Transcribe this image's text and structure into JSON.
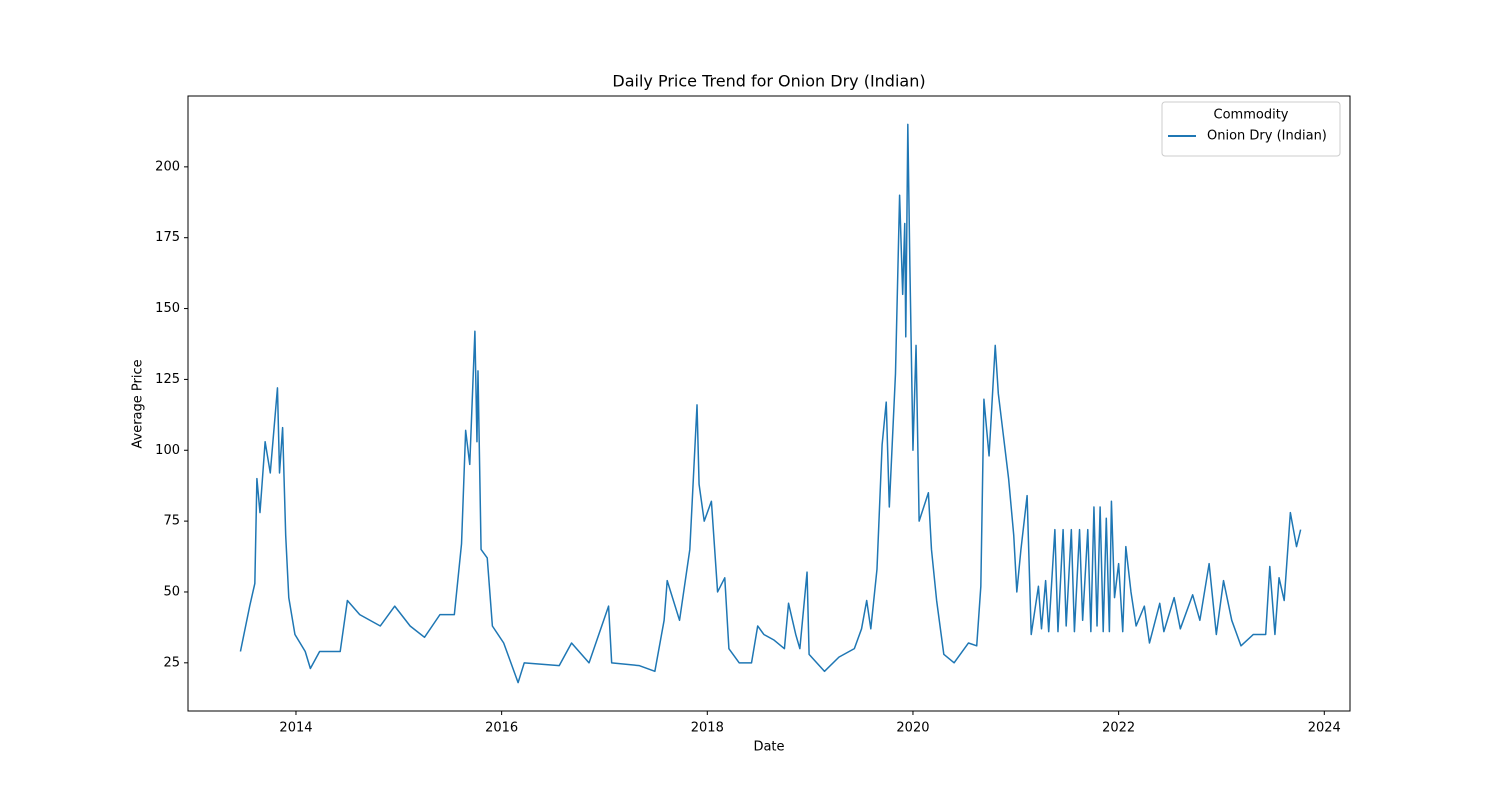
{
  "chart_data": {
    "type": "line",
    "title": "Daily Price Trend for Onion Dry (Indian)",
    "xlabel": "Date",
    "ylabel": "Average Price",
    "legend_title": "Commodity",
    "legend": "upper right",
    "grid": false,
    "x": [
      2013.46,
      2013.55,
      2013.6,
      2013.62,
      2013.65,
      2013.7,
      2013.75,
      2013.82,
      2013.84,
      2013.87,
      2013.9,
      2013.93,
      2013.99,
      2014.09,
      2014.14,
      2014.23,
      2014.43,
      2014.5,
      2014.62,
      2014.82,
      2014.96,
      2015.11,
      2015.25,
      2015.4,
      2015.54,
      2015.61,
      2015.65,
      2015.69,
      2015.74,
      2015.76,
      2015.77,
      2015.8,
      2015.86,
      2015.91,
      2016.02,
      2016.16,
      2016.22,
      2016.56,
      2016.68,
      2016.85,
      2017.04,
      2017.07,
      2017.34,
      2017.49,
      2017.58,
      2017.61,
      2017.73,
      2017.83,
      2017.9,
      2017.92,
      2017.97,
      2018.04,
      2018.1,
      2018.17,
      2018.21,
      2018.31,
      2018.43,
      2018.49,
      2018.55,
      2018.65,
      2018.75,
      2018.79,
      2018.86,
      2018.9,
      2018.97,
      2018.99,
      2019.14,
      2019.28,
      2019.43,
      2019.5,
      2019.55,
      2019.59,
      2019.65,
      2019.7,
      2019.74,
      2019.77,
      2019.83,
      2019.87,
      2019.9,
      2019.92,
      2019.93,
      2019.95,
      2019.97,
      2020.0,
      2020.03,
      2020.06,
      2020.15,
      2020.18,
      2020.23,
      2020.3,
      2020.4,
      2020.54,
      2020.62,
      2020.66,
      2020.69,
      2020.74,
      2020.8,
      2020.83,
      2020.88,
      2020.93,
      2020.98,
      2021.01,
      2021.05,
      2021.11,
      2021.15,
      2021.22,
      2021.25,
      2021.29,
      2021.32,
      2021.38,
      2021.41,
      2021.46,
      2021.49,
      2021.54,
      2021.57,
      2021.62,
      2021.65,
      2021.7,
      2021.73,
      2021.76,
      2021.79,
      2021.82,
      2021.85,
      2021.88,
      2021.91,
      2021.93,
      2021.96,
      2022.0,
      2022.04,
      2022.07,
      2022.12,
      2022.17,
      2022.25,
      2022.3,
      2022.4,
      2022.44,
      2022.54,
      2022.6,
      2022.72,
      2022.79,
      2022.88,
      2022.95,
      2023.02,
      2023.1,
      2023.19,
      2023.31,
      2023.43,
      2023.47,
      2023.52,
      2023.56,
      2023.61,
      2023.67,
      2023.73,
      2023.77
    ],
    "series": [
      {
        "name": "Onion Dry (Indian)",
        "color": "#1f77b4",
        "values": [
          29,
          45,
          53,
          90,
          78,
          103,
          92,
          122,
          92,
          108,
          70,
          48,
          35,
          29,
          23,
          29,
          29,
          47,
          42,
          38,
          45,
          38,
          34,
          42,
          42,
          67,
          107,
          95,
          142,
          103,
          128,
          65,
          62,
          38,
          32,
          18,
          25,
          24,
          32,
          25,
          45,
          25,
          24,
          22,
          40,
          54,
          40,
          65,
          116,
          88,
          75,
          82,
          50,
          55,
          30,
          25,
          25,
          38,
          35,
          33,
          30,
          46,
          35,
          30,
          57,
          28,
          22,
          27,
          30,
          37,
          47,
          37,
          58,
          102,
          117,
          80,
          127,
          190,
          155,
          180,
          140,
          215,
          165,
          100,
          137,
          75,
          85,
          65,
          47,
          28,
          25,
          32,
          31,
          52,
          118,
          98,
          137,
          120,
          105,
          90,
          70,
          50,
          65,
          84,
          35,
          52,
          37,
          54,
          36,
          72,
          36,
          72,
          38,
          72,
          36,
          72,
          40,
          72,
          36,
          80,
          38,
          80,
          36,
          76,
          36,
          82,
          48,
          60,
          36,
          66,
          50,
          38,
          45,
          32,
          46,
          36,
          48,
          37,
          49,
          40,
          60,
          35,
          54,
          40,
          31,
          35,
          35,
          59,
          35,
          55,
          47,
          78,
          66,
          72
        ]
      }
    ],
    "xlim": [
      2012.95,
      2024.25
    ],
    "xticks": [
      2014,
      2016,
      2018,
      2020,
      2022,
      2024
    ],
    "ylim": [
      8,
      225
    ],
    "yticks": [
      25,
      50,
      75,
      100,
      125,
      150,
      175,
      200
    ]
  }
}
